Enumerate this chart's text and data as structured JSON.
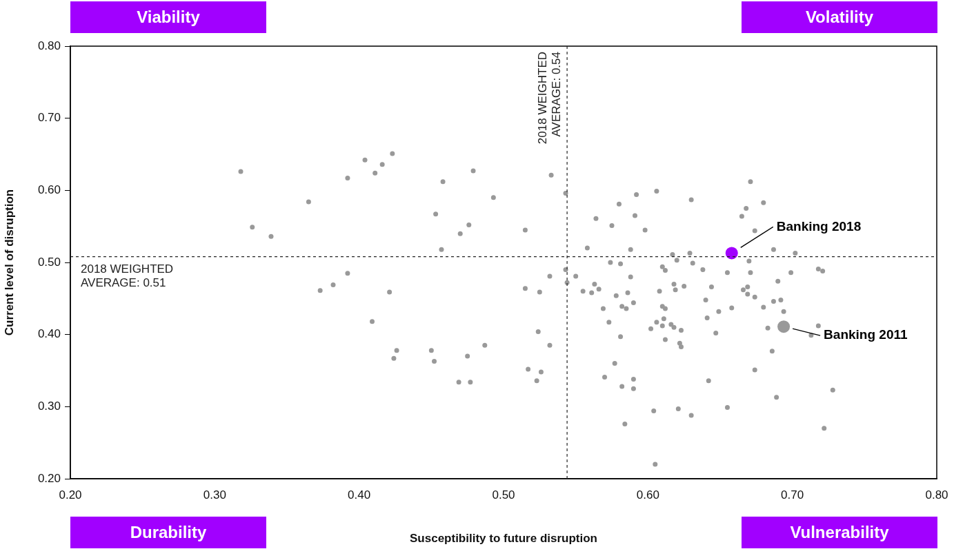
{
  "chart_data": {
    "type": "scatter",
    "xlabel": "Susceptibility to future disruption",
    "ylabel": "Current level of disruption",
    "xlim": [
      0.2,
      0.8
    ],
    "ylim": [
      0.2,
      0.8
    ],
    "xticks": [
      {
        "value": 0.2,
        "label": "0.20"
      },
      {
        "value": 0.3,
        "label": "0.30"
      },
      {
        "value": 0.4,
        "label": "0.40"
      },
      {
        "value": 0.5,
        "label": "0.50"
      },
      {
        "value": 0.6,
        "label": "0.60"
      },
      {
        "value": 0.7,
        "label": "0.70"
      },
      {
        "value": 0.8,
        "label": "0.80"
      }
    ],
    "yticks": [
      {
        "value": 0.2,
        "label": "0.20"
      },
      {
        "value": 0.3,
        "label": "0.30"
      },
      {
        "value": 0.4,
        "label": "0.40"
      },
      {
        "value": 0.5,
        "label": "0.50"
      },
      {
        "value": 0.6,
        "label": "0.60"
      },
      {
        "value": 0.7,
        "label": "0.70"
      },
      {
        "value": 0.8,
        "label": "0.80"
      }
    ],
    "grid": false,
    "legend": false,
    "marker": "circle",
    "series": [
      {
        "color": "#999999",
        "x": [
          0.318,
          0.326,
          0.339,
          0.365,
          0.373,
          0.382,
          0.392,
          0.392,
          0.404,
          0.411,
          0.416,
          0.423,
          0.421,
          0.409,
          0.426,
          0.424,
          0.45,
          0.452,
          0.453,
          0.458,
          0.457,
          0.469,
          0.477,
          0.475,
          0.47,
          0.476,
          0.479,
          0.487,
          0.493,
          0.515,
          0.515,
          0.517,
          0.523,
          0.524,
          0.525,
          0.526,
          0.532,
          0.532,
          0.533,
          0.543,
          0.543,
          0.544,
          0.55,
          0.555,
          0.558,
          0.564,
          0.58,
          0.592,
          0.606,
          0.591,
          0.575,
          0.598,
          0.63,
          0.671,
          0.68,
          0.668,
          0.665,
          0.674,
          0.588,
          0.617,
          0.629,
          0.687,
          0.702,
          0.574,
          0.581,
          0.62,
          0.631,
          0.61,
          0.612,
          0.638,
          0.67,
          0.655,
          0.671,
          0.699,
          0.718,
          0.721,
          0.588,
          0.69,
          0.563,
          0.566,
          0.561,
          0.578,
          0.586,
          0.608,
          0.618,
          0.619,
          0.625,
          0.644,
          0.666,
          0.669,
          0.669,
          0.674,
          0.64,
          0.687,
          0.692,
          0.569,
          0.582,
          0.585,
          0.59,
          0.61,
          0.612,
          0.649,
          0.658,
          0.68,
          0.694,
          0.573,
          0.606,
          0.611,
          0.61,
          0.616,
          0.618,
          0.623,
          0.602,
          0.641,
          0.647,
          0.683,
          0.718,
          0.713,
          0.581,
          0.612,
          0.622,
          0.623,
          0.686,
          0.577,
          0.674,
          0.57,
          0.59,
          0.582,
          0.59,
          0.642,
          0.728,
          0.689,
          0.604,
          0.621,
          0.63,
          0.655,
          0.584,
          0.722,
          0.605
        ],
        "values": [
          0.626,
          0.549,
          0.536,
          0.584,
          0.461,
          0.469,
          0.617,
          0.485,
          0.642,
          0.624,
          0.636,
          0.651,
          0.459,
          0.418,
          0.378,
          0.367,
          0.378,
          0.363,
          0.567,
          0.612,
          0.518,
          0.334,
          0.334,
          0.37,
          0.54,
          0.552,
          0.627,
          0.385,
          0.59,
          0.545,
          0.464,
          0.352,
          0.336,
          0.404,
          0.459,
          0.348,
          0.481,
          0.385,
          0.621,
          0.596,
          0.49,
          0.472,
          0.481,
          0.46,
          0.52,
          0.561,
          0.581,
          0.594,
          0.599,
          0.565,
          0.551,
          0.545,
          0.587,
          0.612,
          0.583,
          0.575,
          0.564,
          0.544,
          0.518,
          0.511,
          0.513,
          0.518,
          0.513,
          0.5,
          0.498,
          0.503,
          0.499,
          0.494,
          0.489,
          0.49,
          0.502,
          0.486,
          0.486,
          0.486,
          0.491,
          0.488,
          0.48,
          0.474,
          0.47,
          0.463,
          0.458,
          0.454,
          0.458,
          0.46,
          0.47,
          0.462,
          0.467,
          0.466,
          0.462,
          0.466,
          0.456,
          0.452,
          0.448,
          0.446,
          0.448,
          0.436,
          0.439,
          0.436,
          0.444,
          0.439,
          0.436,
          0.432,
          0.437,
          0.438,
          0.432,
          0.417,
          0.417,
          0.422,
          0.412,
          0.414,
          0.41,
          0.406,
          0.408,
          0.423,
          0.402,
          0.409,
          0.412,
          0.399,
          0.397,
          0.393,
          0.388,
          0.383,
          0.377,
          0.36,
          0.351,
          0.341,
          0.338,
          0.328,
          0.325,
          0.336,
          0.323,
          0.313,
          0.294,
          0.297,
          0.288,
          0.299,
          0.276,
          0.27,
          0.22
        ]
      },
      {
        "name": "Banking 2018",
        "color": "#a100ff",
        "x": [
          0.658
        ],
        "values": [
          0.513
        ]
      },
      {
        "name": "Banking 2011",
        "color": "#999999",
        "x": [
          0.694
        ],
        "values": [
          0.411
        ]
      }
    ],
    "ref_lines": [
      {
        "axis": "x",
        "value": 0.544,
        "label": "2018 WEIGHTED AVERAGE: 0.54",
        "line_style": "dashed"
      },
      {
        "axis": "y",
        "value": 0.508,
        "label": "2018 WEIGHTED AVERAGE: 0.51",
        "line_style": "dashed"
      }
    ],
    "annotations": [
      "Viability",
      "Volatility",
      "Durability",
      "Vulnerability"
    ]
  }
}
